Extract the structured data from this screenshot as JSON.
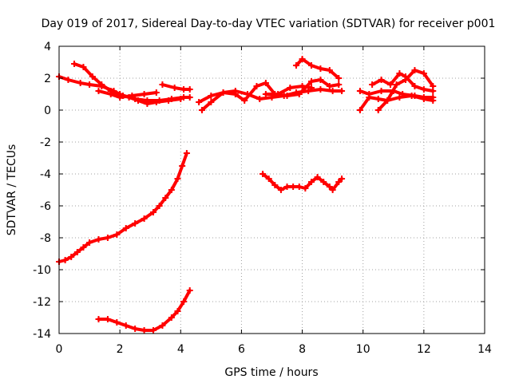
{
  "chart_data": {
    "type": "line",
    "title": "Day 019 of 2017, Sidereal Day-to-day VTEC variation (SDTVAR) for receiver p001",
    "xlabel": "GPS time / hours",
    "ylabel": "SDTVAR / TECUs",
    "xlim": [
      0,
      14
    ],
    "ylim": [
      -14,
      4
    ],
    "xticks": [
      0,
      2,
      4,
      6,
      8,
      10,
      12,
      14
    ],
    "yticks": [
      -14,
      -12,
      -10,
      -8,
      -6,
      -4,
      -2,
      0,
      2,
      4
    ],
    "grid": true,
    "marker": "plus",
    "color": "#ff0000",
    "series": [
      {
        "values": [
          [
            0.0,
            2.1
          ],
          [
            0.3,
            1.9
          ],
          [
            0.7,
            1.7
          ],
          [
            1.0,
            1.6
          ],
          [
            1.4,
            1.5
          ],
          [
            1.8,
            1.2
          ],
          [
            2.1,
            0.9
          ],
          [
            2.5,
            0.7
          ],
          [
            2.9,
            0.6
          ],
          [
            3.3,
            0.6
          ],
          [
            3.7,
            0.7
          ],
          [
            4.1,
            0.8
          ],
          [
            4.3,
            0.8
          ]
        ]
      },
      {
        "values": [
          [
            0.5,
            2.9
          ],
          [
            0.8,
            2.7
          ],
          [
            1.1,
            2.1
          ],
          [
            1.4,
            1.6
          ],
          [
            1.7,
            1.2
          ],
          [
            2.0,
            1.0
          ],
          [
            2.3,
            0.8
          ],
          [
            2.6,
            0.6
          ],
          [
            2.9,
            0.4
          ],
          [
            3.2,
            0.5
          ],
          [
            3.6,
            0.6
          ],
          [
            4.0,
            0.7
          ]
        ]
      },
      {
        "values": [
          [
            1.3,
            1.2
          ],
          [
            1.7,
            1.0
          ],
          [
            2.0,
            0.8
          ],
          [
            2.4,
            0.9
          ],
          [
            2.8,
            1.0
          ],
          [
            3.2,
            1.1
          ]
        ]
      },
      {
        "values": [
          [
            3.4,
            1.6
          ],
          [
            3.8,
            1.4
          ],
          [
            4.1,
            1.3
          ],
          [
            4.3,
            1.3
          ]
        ]
      },
      {
        "values": [
          [
            4.6,
            0.5
          ],
          [
            5.0,
            0.9
          ],
          [
            5.4,
            1.1
          ],
          [
            5.8,
            1.2
          ],
          [
            6.2,
            1.0
          ],
          [
            6.6,
            0.7
          ],
          [
            7.0,
            0.8
          ],
          [
            7.4,
            0.9
          ],
          [
            7.8,
            1.1
          ],
          [
            8.2,
            1.2
          ],
          [
            8.6,
            1.3
          ],
          [
            9.0,
            1.2
          ],
          [
            9.3,
            1.2
          ]
        ]
      },
      {
        "values": [
          [
            4.7,
            0.0
          ],
          [
            5.0,
            0.5
          ],
          [
            5.4,
            1.1
          ],
          [
            5.8,
            1.0
          ],
          [
            6.1,
            0.6
          ],
          [
            6.5,
            1.5
          ],
          [
            6.8,
            1.7
          ],
          [
            7.1,
            1.0
          ],
          [
            7.5,
            0.9
          ],
          [
            7.9,
            1.0
          ],
          [
            8.3,
            1.8
          ],
          [
            8.6,
            1.9
          ],
          [
            8.9,
            1.5
          ],
          [
            9.2,
            1.6
          ]
        ]
      },
      {
        "values": [
          [
            6.8,
            1.0
          ],
          [
            7.2,
            1.0
          ],
          [
            7.6,
            1.4
          ],
          [
            8.0,
            1.5
          ],
          [
            8.3,
            1.4
          ]
        ]
      },
      {
        "values": [
          [
            7.8,
            2.8
          ],
          [
            8.0,
            3.2
          ],
          [
            8.3,
            2.8
          ],
          [
            8.6,
            2.6
          ],
          [
            8.9,
            2.5
          ],
          [
            9.2,
            2.0
          ]
        ]
      },
      {
        "values": [
          [
            6.7,
            -4.0
          ],
          [
            6.9,
            -4.3
          ],
          [
            7.1,
            -4.7
          ],
          [
            7.3,
            -5.0
          ],
          [
            7.5,
            -4.8
          ],
          [
            7.7,
            -4.8
          ],
          [
            7.9,
            -4.8
          ],
          [
            8.1,
            -4.9
          ],
          [
            8.3,
            -4.5
          ],
          [
            8.5,
            -4.2
          ],
          [
            8.7,
            -4.5
          ],
          [
            8.9,
            -4.8
          ],
          [
            9.0,
            -5.0
          ],
          [
            9.2,
            -4.5
          ],
          [
            9.3,
            -4.3
          ]
        ]
      },
      {
        "values": [
          [
            0.0,
            -9.5
          ],
          [
            0.2,
            -9.4
          ],
          [
            0.4,
            -9.2
          ],
          [
            0.6,
            -8.9
          ],
          [
            0.8,
            -8.6
          ],
          [
            1.0,
            -8.3
          ],
          [
            1.3,
            -8.1
          ],
          [
            1.6,
            -8.0
          ],
          [
            1.9,
            -7.8
          ],
          [
            2.2,
            -7.4
          ],
          [
            2.5,
            -7.1
          ],
          [
            2.8,
            -6.8
          ],
          [
            3.1,
            -6.4
          ],
          [
            3.3,
            -6.0
          ],
          [
            3.5,
            -5.5
          ],
          [
            3.7,
            -5.0
          ],
          [
            3.9,
            -4.3
          ],
          [
            4.05,
            -3.5
          ],
          [
            4.2,
            -2.7
          ]
        ]
      },
      {
        "values": [
          [
            1.3,
            -13.1
          ],
          [
            1.6,
            -13.1
          ],
          [
            1.9,
            -13.3
          ],
          [
            2.2,
            -13.5
          ],
          [
            2.5,
            -13.7
          ],
          [
            2.8,
            -13.8
          ],
          [
            3.1,
            -13.8
          ],
          [
            3.4,
            -13.5
          ],
          [
            3.7,
            -13.0
          ],
          [
            3.9,
            -12.6
          ],
          [
            4.1,
            -12.0
          ],
          [
            4.3,
            -11.3
          ]
        ]
      },
      {
        "values": [
          [
            9.9,
            0.0
          ],
          [
            10.2,
            0.8
          ],
          [
            10.5,
            0.7
          ],
          [
            10.8,
            0.6
          ],
          [
            11.2,
            0.8
          ],
          [
            11.6,
            0.9
          ],
          [
            12.0,
            0.7
          ],
          [
            12.3,
            0.6
          ]
        ]
      },
      {
        "values": [
          [
            9.9,
            1.2
          ],
          [
            10.2,
            1.0
          ],
          [
            10.6,
            1.2
          ],
          [
            11.0,
            1.2
          ],
          [
            11.3,
            1.0
          ],
          [
            11.7,
            0.9
          ],
          [
            12.0,
            0.8
          ],
          [
            12.3,
            0.8
          ]
        ]
      },
      {
        "values": [
          [
            10.3,
            1.6
          ],
          [
            10.6,
            1.9
          ],
          [
            10.9,
            1.6
          ],
          [
            11.2,
            2.3
          ],
          [
            11.4,
            2.1
          ],
          [
            11.7,
            1.5
          ],
          [
            12.0,
            1.3
          ],
          [
            12.3,
            1.2
          ]
        ]
      },
      {
        "values": [
          [
            10.5,
            0.0
          ],
          [
            10.8,
            0.6
          ],
          [
            11.1,
            1.6
          ],
          [
            11.4,
            1.9
          ],
          [
            11.7,
            2.5
          ],
          [
            12.0,
            2.3
          ],
          [
            12.3,
            1.5
          ]
        ]
      }
    ]
  }
}
